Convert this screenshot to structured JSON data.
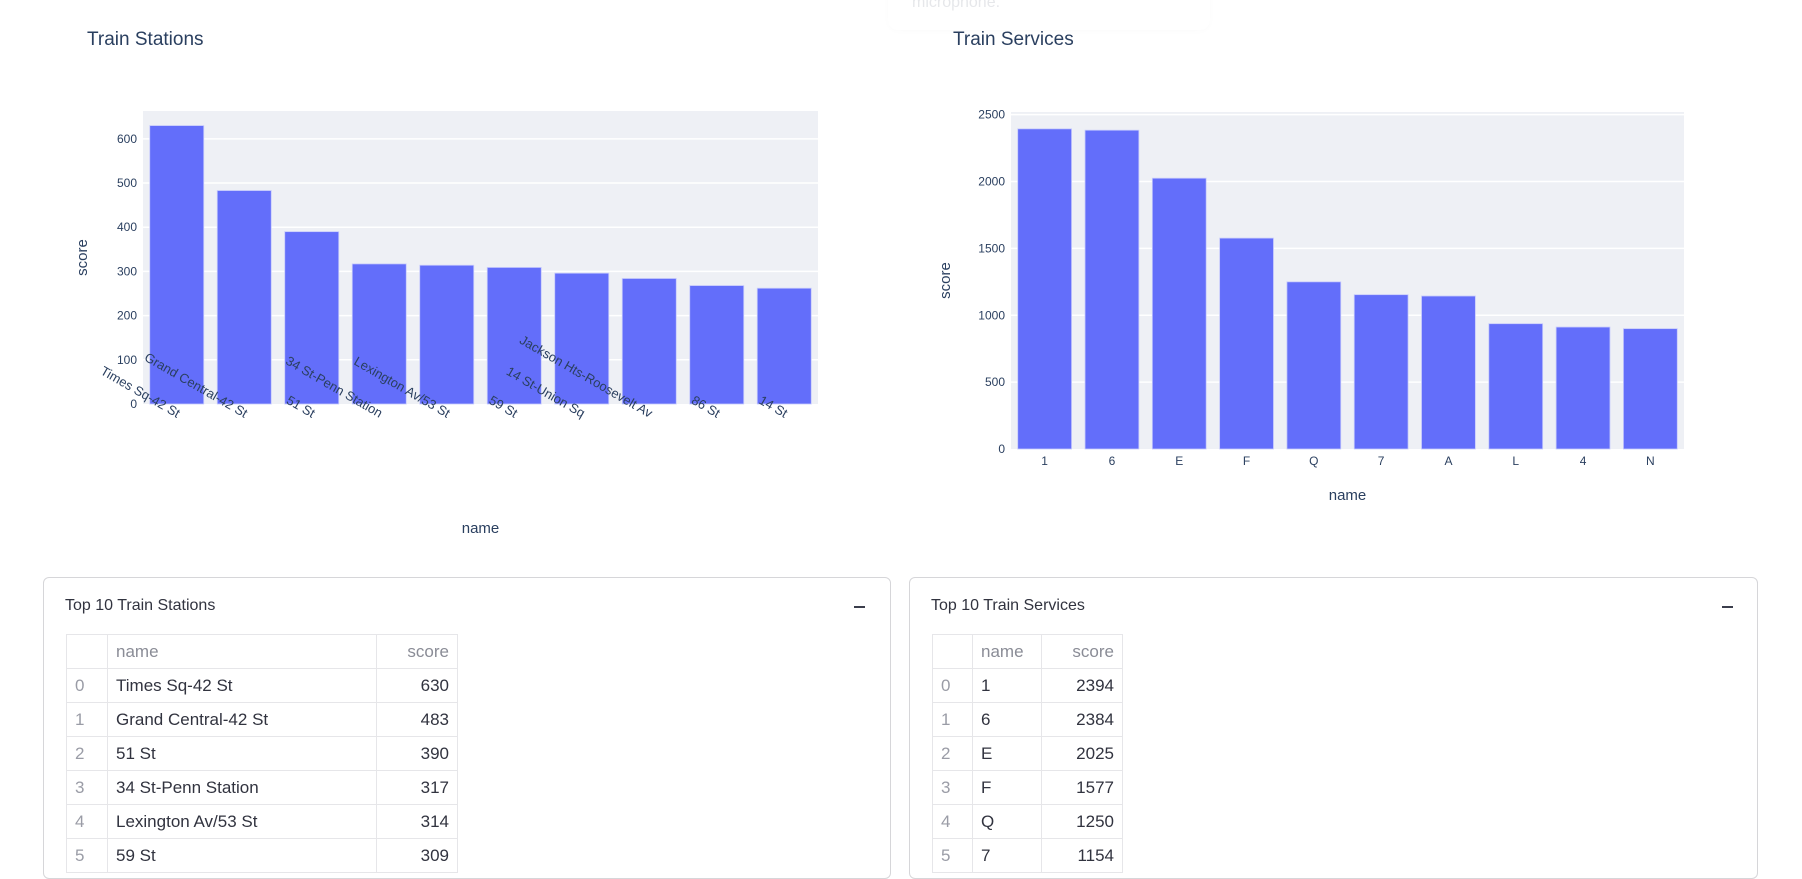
{
  "notification": {
    "text": "microphone."
  },
  "charts": {
    "stations": {
      "title": "Train Stations"
    },
    "services": {
      "title": "Train Services"
    }
  },
  "chart_data": [
    {
      "type": "bar",
      "title": "Train Stations",
      "xlabel": "name",
      "ylabel": "score",
      "categories": [
        "Times Sq-42 St",
        "Grand Central-42 St",
        "51 St",
        "34 St-Penn Station",
        "Lexington Av/53 St",
        "59 St",
        "14 St-Union Sq",
        "Jackson Hts-Roosevelt Av",
        "86 St",
        "14 St"
      ],
      "values": [
        630,
        483,
        390,
        317,
        314,
        309,
        296,
        284,
        268,
        262
      ],
      "ylim": [
        0,
        663
      ],
      "yticks": [
        0,
        100,
        200,
        300,
        400,
        500,
        600
      ],
      "tick_rotation": "angled",
      "grid": true,
      "bar_color": "#636efa",
      "plot_bg": "#e5ecf6"
    },
    {
      "type": "bar",
      "title": "Train Services",
      "xlabel": "name",
      "ylabel": "score",
      "categories": [
        "1",
        "6",
        "E",
        "F",
        "Q",
        "7",
        "A",
        "L",
        "4",
        "N"
      ],
      "values": [
        2394,
        2384,
        2025,
        1577,
        1250,
        1154,
        1144,
        937,
        912,
        900
      ],
      "ylim": [
        0,
        2520
      ],
      "yticks": [
        0,
        500,
        1000,
        1500,
        2000,
        2500
      ],
      "tick_rotation": "none",
      "grid": true,
      "bar_color": "#636efa",
      "plot_bg": "#e5ecf6"
    }
  ],
  "tables": {
    "stations": {
      "title": "Top 10 Train Stations",
      "columns": [
        "",
        "name",
        "score"
      ],
      "rows": [
        [
          "0",
          "Times Sq-42 St",
          "630"
        ],
        [
          "1",
          "Grand Central-42 St",
          "483"
        ],
        [
          "2",
          "51 St",
          "390"
        ],
        [
          "3",
          "34 St-Penn Station",
          "317"
        ],
        [
          "4",
          "Lexington Av/53 St",
          "314"
        ],
        [
          "5",
          "59 St",
          "309"
        ]
      ]
    },
    "services": {
      "title": "Top 10 Train Services",
      "columns": [
        "",
        "name",
        "score"
      ],
      "rows": [
        [
          "0",
          "1",
          "2394"
        ],
        [
          "1",
          "6",
          "2384"
        ],
        [
          "2",
          "E",
          "2025"
        ],
        [
          "3",
          "F",
          "1577"
        ],
        [
          "4",
          "Q",
          "1250"
        ],
        [
          "5",
          "7",
          "1154"
        ]
      ]
    }
  },
  "colors": {
    "bar": "#636efa",
    "plot_bg": "#eef0f5",
    "grid": "#ffffff",
    "text": "#2a3f5f"
  }
}
